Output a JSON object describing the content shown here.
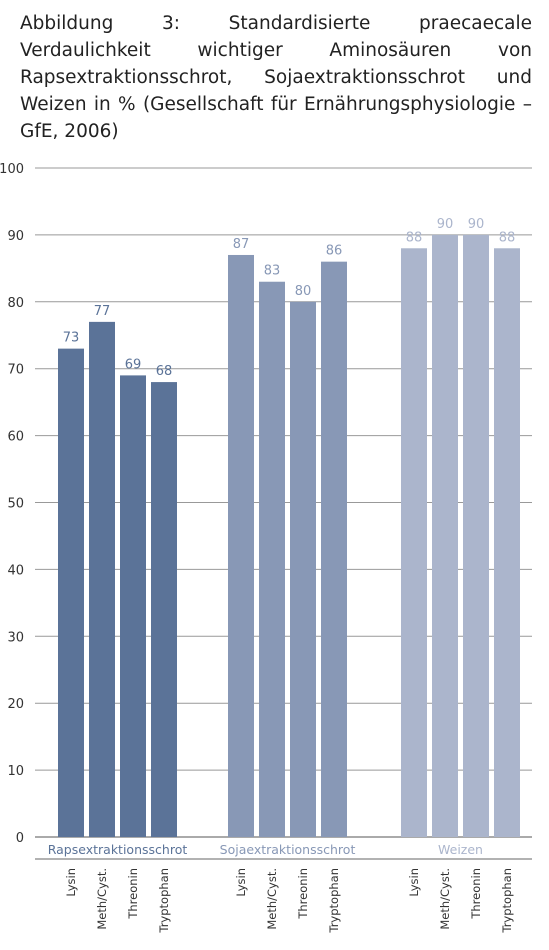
{
  "chart_data": {
    "type": "grouped-bar",
    "title": "Abbildung 3: Standardisierte praecaecale Verdaulichkeit wichtiger Aminosäuren von Rapsextraktionsschrot, Sojaextraktionsschrot und Weizen in % (Gesellschaft für Ernährungsphysiologie – GfE, 2006)",
    "categories": [
      "Lysin",
      "Meth/Cyst.",
      "Threonin",
      "Tryptophan"
    ],
    "series": [
      {
        "name": "Rapsextraktionsschrot",
        "color": "#5b7398",
        "values": [
          73,
          77,
          69,
          68
        ]
      },
      {
        "name": "Sojaextraktionsschrot",
        "color": "#8898b6",
        "values": [
          87,
          83,
          80,
          86
        ]
      },
      {
        "name": "Weizen",
        "color": "#abb5cc",
        "values": [
          88,
          90,
          90,
          88
        ]
      }
    ],
    "ylim": [
      0,
      100
    ],
    "yticks": [
      0,
      10,
      20,
      30,
      40,
      50,
      60,
      70,
      80,
      90,
      100
    ],
    "grid": true
  }
}
